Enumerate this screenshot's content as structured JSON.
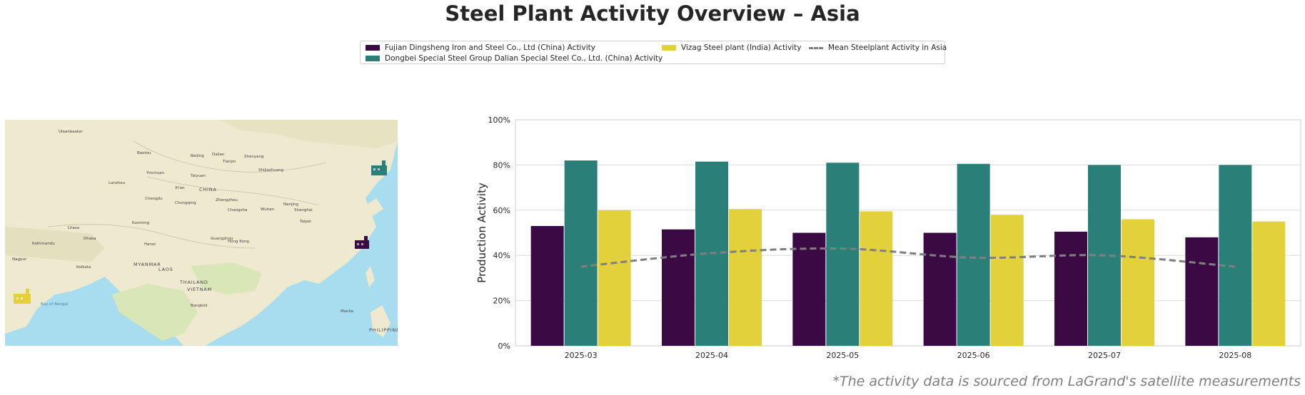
{
  "title": "Steel Plant Activity Overview – Asia",
  "footnote": "*The activity data is sourced from LaGrand's satellite measurements",
  "legend": {
    "items": [
      {
        "label": "Fujian Dingsheng Iron and Steel Co., Ltd (China) Activity",
        "color": "#3b0a45"
      },
      {
        "label": "Dongbei Special Steel Group Dalian Special Steel Co., Ltd. (China) Activity",
        "color": "#2a8079"
      },
      {
        "label": "Vizag Steel plant (India) Activity",
        "color": "#e3d13b"
      },
      {
        "label": "Mean Steelplant Activity in Asia",
        "color": "#7f7f7f"
      }
    ]
  },
  "map": {
    "labels": [
      "Ulaanbaatar",
      "Baotou",
      "Beijing",
      "Dalian",
      "Shenyang",
      "Tianjin",
      "Shijiazhuang",
      "Taiyuan",
      "Lanzhou",
      "CHINA",
      "Xi'an",
      "Zhengzhou",
      "Nanjing",
      "Shanghai",
      "Wuhan",
      "Chongqing",
      "Chengdu",
      "Changsha",
      "Kunming",
      "Guangzhou",
      "Hong Kong",
      "Hanoi",
      "Taipei",
      "Dhaka",
      "Kolkata",
      "Bay of Bengal",
      "THAILAND",
      "Bangkok",
      "MYANMAR",
      "LAOS",
      "VIETNAM",
      "Manila",
      "PHILIPPINES",
      "Nagpur",
      "Yinchuan",
      "Lhasa",
      "Kathmandu"
    ],
    "colors": {
      "sea": "#a8dcef",
      "land": "#efe9cf",
      "green": "#d8e6b8"
    },
    "icons": [
      {
        "name": "factory-icon-vizag",
        "color": "#e3d13b"
      },
      {
        "name": "factory-icon-fujian",
        "color": "#3b0a45"
      },
      {
        "name": "factory-icon-dalian",
        "color": "#2a8079"
      }
    ]
  },
  "chart_data": {
    "type": "bar",
    "categories": [
      "2025-03",
      "2025-04",
      "2025-05",
      "2025-06",
      "2025-07",
      "2025-08"
    ],
    "series": [
      {
        "name": "Fujian Dingsheng Iron and Steel Co., Ltd (China) Activity",
        "color": "#3b0a45",
        "values": [
          53,
          51.5,
          50,
          50,
          50.5,
          48
        ]
      },
      {
        "name": "Dongbei Special Steel Group Dalian Special Steel Co., Ltd. (China) Activity",
        "color": "#2a8079",
        "values": [
          82,
          81.5,
          81,
          80.5,
          80,
          80
        ]
      },
      {
        "name": "Vizag Steel plant (India) Activity",
        "color": "#e3d13b",
        "values": [
          60,
          60.5,
          59.5,
          58,
          56,
          55
        ]
      }
    ],
    "mean_line": {
      "name": "Mean Steelplant Activity in Asia",
      "style": "dashed",
      "color": "#7f7f7f",
      "values": [
        35,
        41,
        43,
        39,
        40,
        35
      ]
    },
    "ylabel": "Production Activity",
    "xlabel": "",
    "ylim": [
      0,
      100
    ],
    "yticks": [
      "0%",
      "20%",
      "40%",
      "60%",
      "80%",
      "100%"
    ],
    "ytick_values": [
      0,
      20,
      40,
      60,
      80,
      100
    ],
    "grid": true
  }
}
